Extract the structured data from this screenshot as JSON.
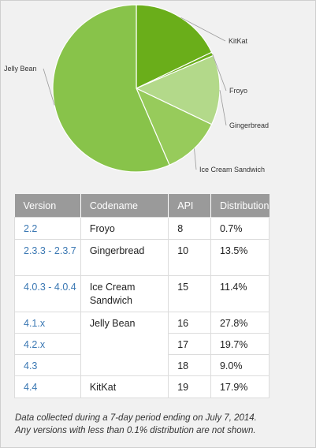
{
  "chart_data": {
    "type": "pie",
    "slices": [
      {
        "label": "KitKat",
        "value": 17.9,
        "color": "#6aae1a"
      },
      {
        "label": "Froyo",
        "value": 0.7,
        "color": "#6aae1a"
      },
      {
        "label": "Gingerbread",
        "value": 13.5,
        "color": "#b3d98a"
      },
      {
        "label": "Ice Cream Sandwich",
        "value": 11.4,
        "color": "#97cb5b"
      },
      {
        "label": "Jelly Bean",
        "value": 56.5,
        "color": "#88c34a"
      }
    ]
  },
  "table": {
    "headers": {
      "version": "Version",
      "codename": "Codename",
      "api": "API",
      "distribution": "Distribution"
    },
    "rows": [
      {
        "version": "2.2",
        "codename": "Froyo",
        "api": "8",
        "distribution": "0.7%"
      },
      {
        "version": "2.3.3 - 2.3.7",
        "codename": "Gingerbread",
        "api": "10",
        "distribution": "13.5%"
      },
      {
        "version": "4.0.3 - 4.0.4",
        "codename": "Ice Cream Sandwich",
        "api": "15",
        "distribution": "11.4%"
      },
      {
        "version": "4.1.x",
        "codename": "Jelly Bean",
        "api": "16",
        "distribution": "27.8%"
      },
      {
        "version": "4.2.x",
        "codename": "",
        "api": "17",
        "distribution": "19.7%"
      },
      {
        "version": "4.3",
        "codename": "",
        "api": "18",
        "distribution": "9.0%"
      },
      {
        "version": "4.4",
        "codename": "KitKat",
        "api": "19",
        "distribution": "17.9%"
      }
    ]
  },
  "footnote": {
    "line1": "Data collected during a 7-day period ending on July 7, 2014.",
    "line2": "Any versions with less than 0.1% distribution are not shown."
  },
  "colors": {
    "link": "#3b78b3",
    "header_bg": "#9a9a9a"
  }
}
